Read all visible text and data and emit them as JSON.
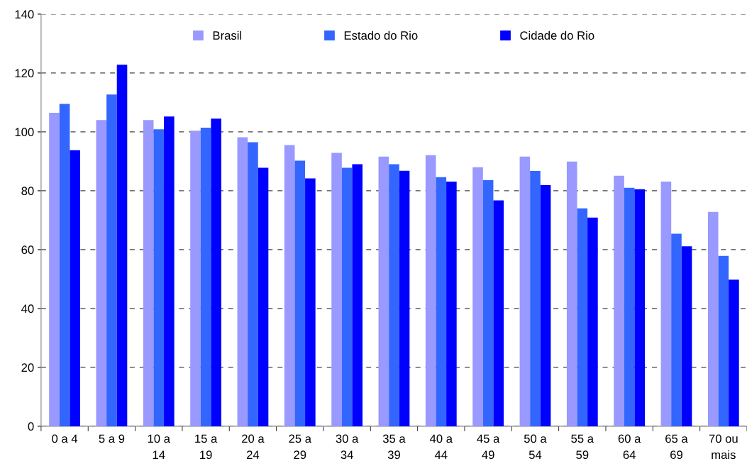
{
  "chart_data": {
    "type": "bar",
    "categories": [
      "0 a 4",
      "5 a 9",
      "10 a\n14",
      "15 a\n19",
      "20 a\n24",
      "25 a\n29",
      "30 a\n34",
      "35 a\n39",
      "40 a\n44",
      "45 a\n49",
      "50 a\n54",
      "55 a\n59",
      "60 a\n64",
      "65 a\n69",
      "70 ou\nmais"
    ],
    "series": [
      {
        "name": "Brasil",
        "color": "#9999ff",
        "values": [
          106.5,
          104,
          104,
          100.4,
          98.2,
          95.5,
          92.9,
          91.6,
          92.1,
          88,
          91.6,
          89.9,
          85.1,
          83.1,
          72.8
        ]
      },
      {
        "name": "Estado do Rio",
        "color": "#3366ff",
        "values": [
          109.5,
          112.7,
          100.9,
          101.4,
          96.5,
          90.2,
          87.8,
          89,
          84.6,
          83.6,
          86.7,
          74,
          81,
          65.4,
          57.9
        ]
      },
      {
        "name": "Cidade do Rio",
        "color": "#0000ff",
        "values": [
          93.8,
          122.8,
          105.2,
          104.5,
          87.8,
          84.2,
          89,
          86.8,
          83.1,
          76.7,
          81.9,
          70.9,
          80.5,
          61.1,
          49.8
        ]
      }
    ],
    "ylim": [
      0,
      140
    ],
    "yticks": [
      0,
      20,
      40,
      60,
      80,
      100,
      120,
      140
    ],
    "grid": "y",
    "legend": "top"
  }
}
